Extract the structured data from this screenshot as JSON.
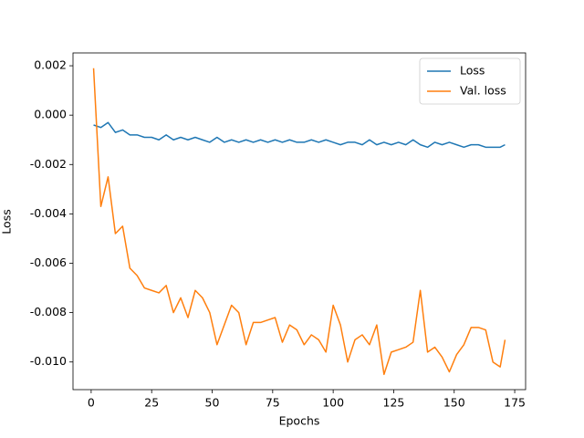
{
  "chart_data": {
    "type": "line",
    "xlabel": "Epochs",
    "ylabel": "Loss",
    "x": [
      1,
      4,
      7,
      10,
      13,
      16,
      19,
      22,
      25,
      28,
      31,
      34,
      37,
      40,
      43,
      46,
      49,
      52,
      55,
      58,
      61,
      64,
      67,
      70,
      73,
      76,
      79,
      82,
      85,
      88,
      91,
      94,
      97,
      100,
      103,
      106,
      109,
      112,
      115,
      118,
      121,
      124,
      127,
      130,
      133,
      136,
      139,
      142,
      145,
      148,
      151,
      154,
      157,
      160,
      163,
      166,
      169,
      171
    ],
    "series": [
      {
        "name": "Loss",
        "color": "#1f77b4",
        "values": [
          -0.0004,
          -0.0005,
          -0.0003,
          -0.0007,
          -0.0006,
          -0.0008,
          -0.0008,
          -0.0009,
          -0.0009,
          -0.001,
          -0.0008,
          -0.001,
          -0.0009,
          -0.001,
          -0.0009,
          -0.001,
          -0.0011,
          -0.0009,
          -0.0011,
          -0.001,
          -0.0011,
          -0.001,
          -0.0011,
          -0.001,
          -0.0011,
          -0.001,
          -0.0011,
          -0.001,
          -0.0011,
          -0.0011,
          -0.001,
          -0.0011,
          -0.001,
          -0.0011,
          -0.0012,
          -0.0011,
          -0.0011,
          -0.0012,
          -0.001,
          -0.0012,
          -0.0011,
          -0.0012,
          -0.0011,
          -0.0012,
          -0.001,
          -0.0012,
          -0.0013,
          -0.0011,
          -0.0012,
          -0.0011,
          -0.0012,
          -0.0013,
          -0.0012,
          -0.0012,
          -0.0013,
          -0.0013,
          -0.0013,
          -0.0012
        ]
      },
      {
        "name": "Val. loss",
        "color": "#ff7f0e",
        "values": [
          0.0019,
          -0.0037,
          -0.0025,
          -0.0048,
          -0.0045,
          -0.0062,
          -0.0065,
          -0.007,
          -0.0071,
          -0.0072,
          -0.0069,
          -0.008,
          -0.0074,
          -0.0082,
          -0.0071,
          -0.0074,
          -0.008,
          -0.0093,
          -0.0085,
          -0.0077,
          -0.008,
          -0.0093,
          -0.0084,
          -0.0084,
          -0.0083,
          -0.0082,
          -0.0092,
          -0.0085,
          -0.0087,
          -0.0093,
          -0.0089,
          -0.0091,
          -0.0096,
          -0.0077,
          -0.0085,
          -0.01,
          -0.0091,
          -0.0089,
          -0.0093,
          -0.0085,
          -0.0105,
          -0.0096,
          -0.0095,
          -0.0094,
          -0.0092,
          -0.0071,
          -0.0096,
          -0.0094,
          -0.0098,
          -0.0104,
          -0.0097,
          -0.0093,
          -0.0086,
          -0.0086,
          -0.0087,
          -0.01,
          -0.0102,
          -0.0091
        ]
      }
    ],
    "xlim": [
      -7.5,
      179.5
    ],
    "xticks": [
      0,
      25,
      50,
      75,
      100,
      125,
      150,
      175
    ],
    "ylim": [
      -0.01112,
      0.00252
    ],
    "yticks": [
      0.002,
      {
        "value": 0,
        "label": "0.000"
      },
      -0.002,
      -0.004,
      -0.006,
      -0.008,
      {
        "value": -0.01,
        "label": "-0.010"
      }
    ],
    "legend": "upper right"
  }
}
